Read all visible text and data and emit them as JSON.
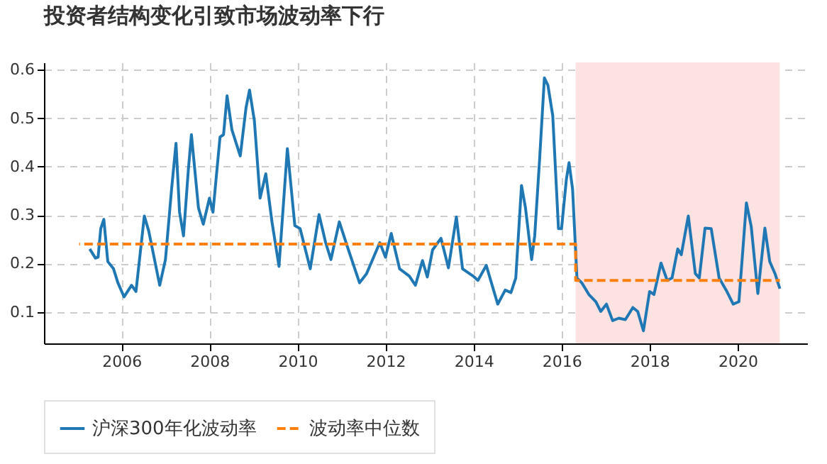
{
  "chart_data": {
    "type": "line",
    "title": "投资者结构变化引致市场波动率下行",
    "xlim": [
      2004.24,
      2021.58
    ],
    "xticks": [
      2006,
      2008,
      2010,
      2012,
      2014,
      2016,
      2018,
      2020
    ],
    "ylim": [
      0.035,
      0.615
    ],
    "yticks": [
      0.1,
      0.2,
      0.3,
      0.4,
      0.5,
      0.6
    ],
    "grid": true,
    "legend": "bottom",
    "bands": [
      {
        "axis": "x",
        "from": 2016.32,
        "to": 2020.96,
        "color": "#fde2e2"
      }
    ],
    "series": [
      {
        "name": "沪深300年化波动率",
        "color": "#1f77b4",
        "line_style": "solid",
        "x": [
          2005.28,
          2005.41,
          2005.47,
          2005.53,
          2005.6,
          2005.69,
          2005.82,
          2005.92,
          2006.06,
          2006.23,
          2006.33,
          2006.52,
          2006.62,
          2006.73,
          2006.87,
          2007.0,
          2007.14,
          2007.24,
          2007.32,
          2007.41,
          2007.52,
          2007.59,
          2007.75,
          2007.86,
          2008.0,
          2008.08,
          2008.24,
          2008.32,
          2008.4,
          2008.51,
          2008.7,
          2008.83,
          2008.91,
          2009.02,
          2009.15,
          2009.28,
          2009.42,
          2009.58,
          2009.77,
          2009.94,
          2010.06,
          2010.29,
          2010.49,
          2010.64,
          2010.76,
          2010.95,
          2011.14,
          2011.41,
          2011.57,
          2011.87,
          2012.0,
          2012.13,
          2012.32,
          2012.54,
          2012.68,
          2012.84,
          2012.95,
          2013.07,
          2013.26,
          2013.43,
          2013.61,
          2013.75,
          2013.99,
          2014.1,
          2014.29,
          2014.55,
          2014.72,
          2014.85,
          2014.96,
          2015.09,
          2015.18,
          2015.32,
          2015.39,
          2015.5,
          2015.61,
          2015.69,
          2015.8,
          2015.93,
          2016.0,
          2016.11,
          2016.17,
          2016.25,
          2016.35,
          2016.46,
          2016.62,
          2016.78,
          2016.89,
          2017.02,
          2017.16,
          2017.3,
          2017.45,
          2017.62,
          2017.73,
          2017.86,
          2018.0,
          2018.1,
          2018.26,
          2018.4,
          2018.51,
          2018.64,
          2018.72,
          2018.88,
          2019.04,
          2019.13,
          2019.26,
          2019.4,
          2019.58,
          2019.74,
          2019.9,
          2020.03,
          2020.2,
          2020.31,
          2020.46,
          2020.62,
          2020.73,
          2020.85,
          2020.96
        ],
        "values": [
          0.23,
          0.211,
          0.213,
          0.272,
          0.291,
          0.204,
          0.189,
          0.16,
          0.131,
          0.155,
          0.142,
          0.298,
          0.267,
          0.218,
          0.155,
          0.208,
          0.354,
          0.448,
          0.306,
          0.257,
          0.393,
          0.466,
          0.315,
          0.281,
          0.335,
          0.306,
          0.461,
          0.466,
          0.546,
          0.476,
          0.422,
          0.521,
          0.558,
          0.495,
          0.335,
          0.385,
          0.286,
          0.194,
          0.437,
          0.278,
          0.272,
          0.189,
          0.301,
          0.243,
          0.208,
          0.286,
          0.233,
          0.16,
          0.179,
          0.243,
          0.213,
          0.262,
          0.189,
          0.174,
          0.155,
          0.206,
          0.172,
          0.228,
          0.252,
          0.191,
          0.296,
          0.189,
          0.174,
          0.165,
          0.196,
          0.116,
          0.145,
          0.14,
          0.17,
          0.361,
          0.315,
          0.208,
          0.257,
          0.413,
          0.583,
          0.568,
          0.505,
          0.272,
          0.272,
          0.374,
          0.408,
          0.354,
          0.17,
          0.16,
          0.136,
          0.121,
          0.101,
          0.116,
          0.082,
          0.087,
          0.084,
          0.109,
          0.101,
          0.061,
          0.142,
          0.136,
          0.201,
          0.165,
          0.17,
          0.23,
          0.218,
          0.298,
          0.179,
          0.17,
          0.273,
          0.272,
          0.17,
          0.145,
          0.116,
          0.121,
          0.325,
          0.276,
          0.138,
          0.273,
          0.204,
          0.179,
          0.148
        ]
      },
      {
        "name": "波动率中位数",
        "color": "#ff7f0e",
        "line_style": "dashed",
        "x": [
          2005.04,
          2016.32,
          2016.32,
          2020.96
        ],
        "values": [
          0.24,
          0.24,
          0.165,
          0.165
        ]
      }
    ]
  }
}
